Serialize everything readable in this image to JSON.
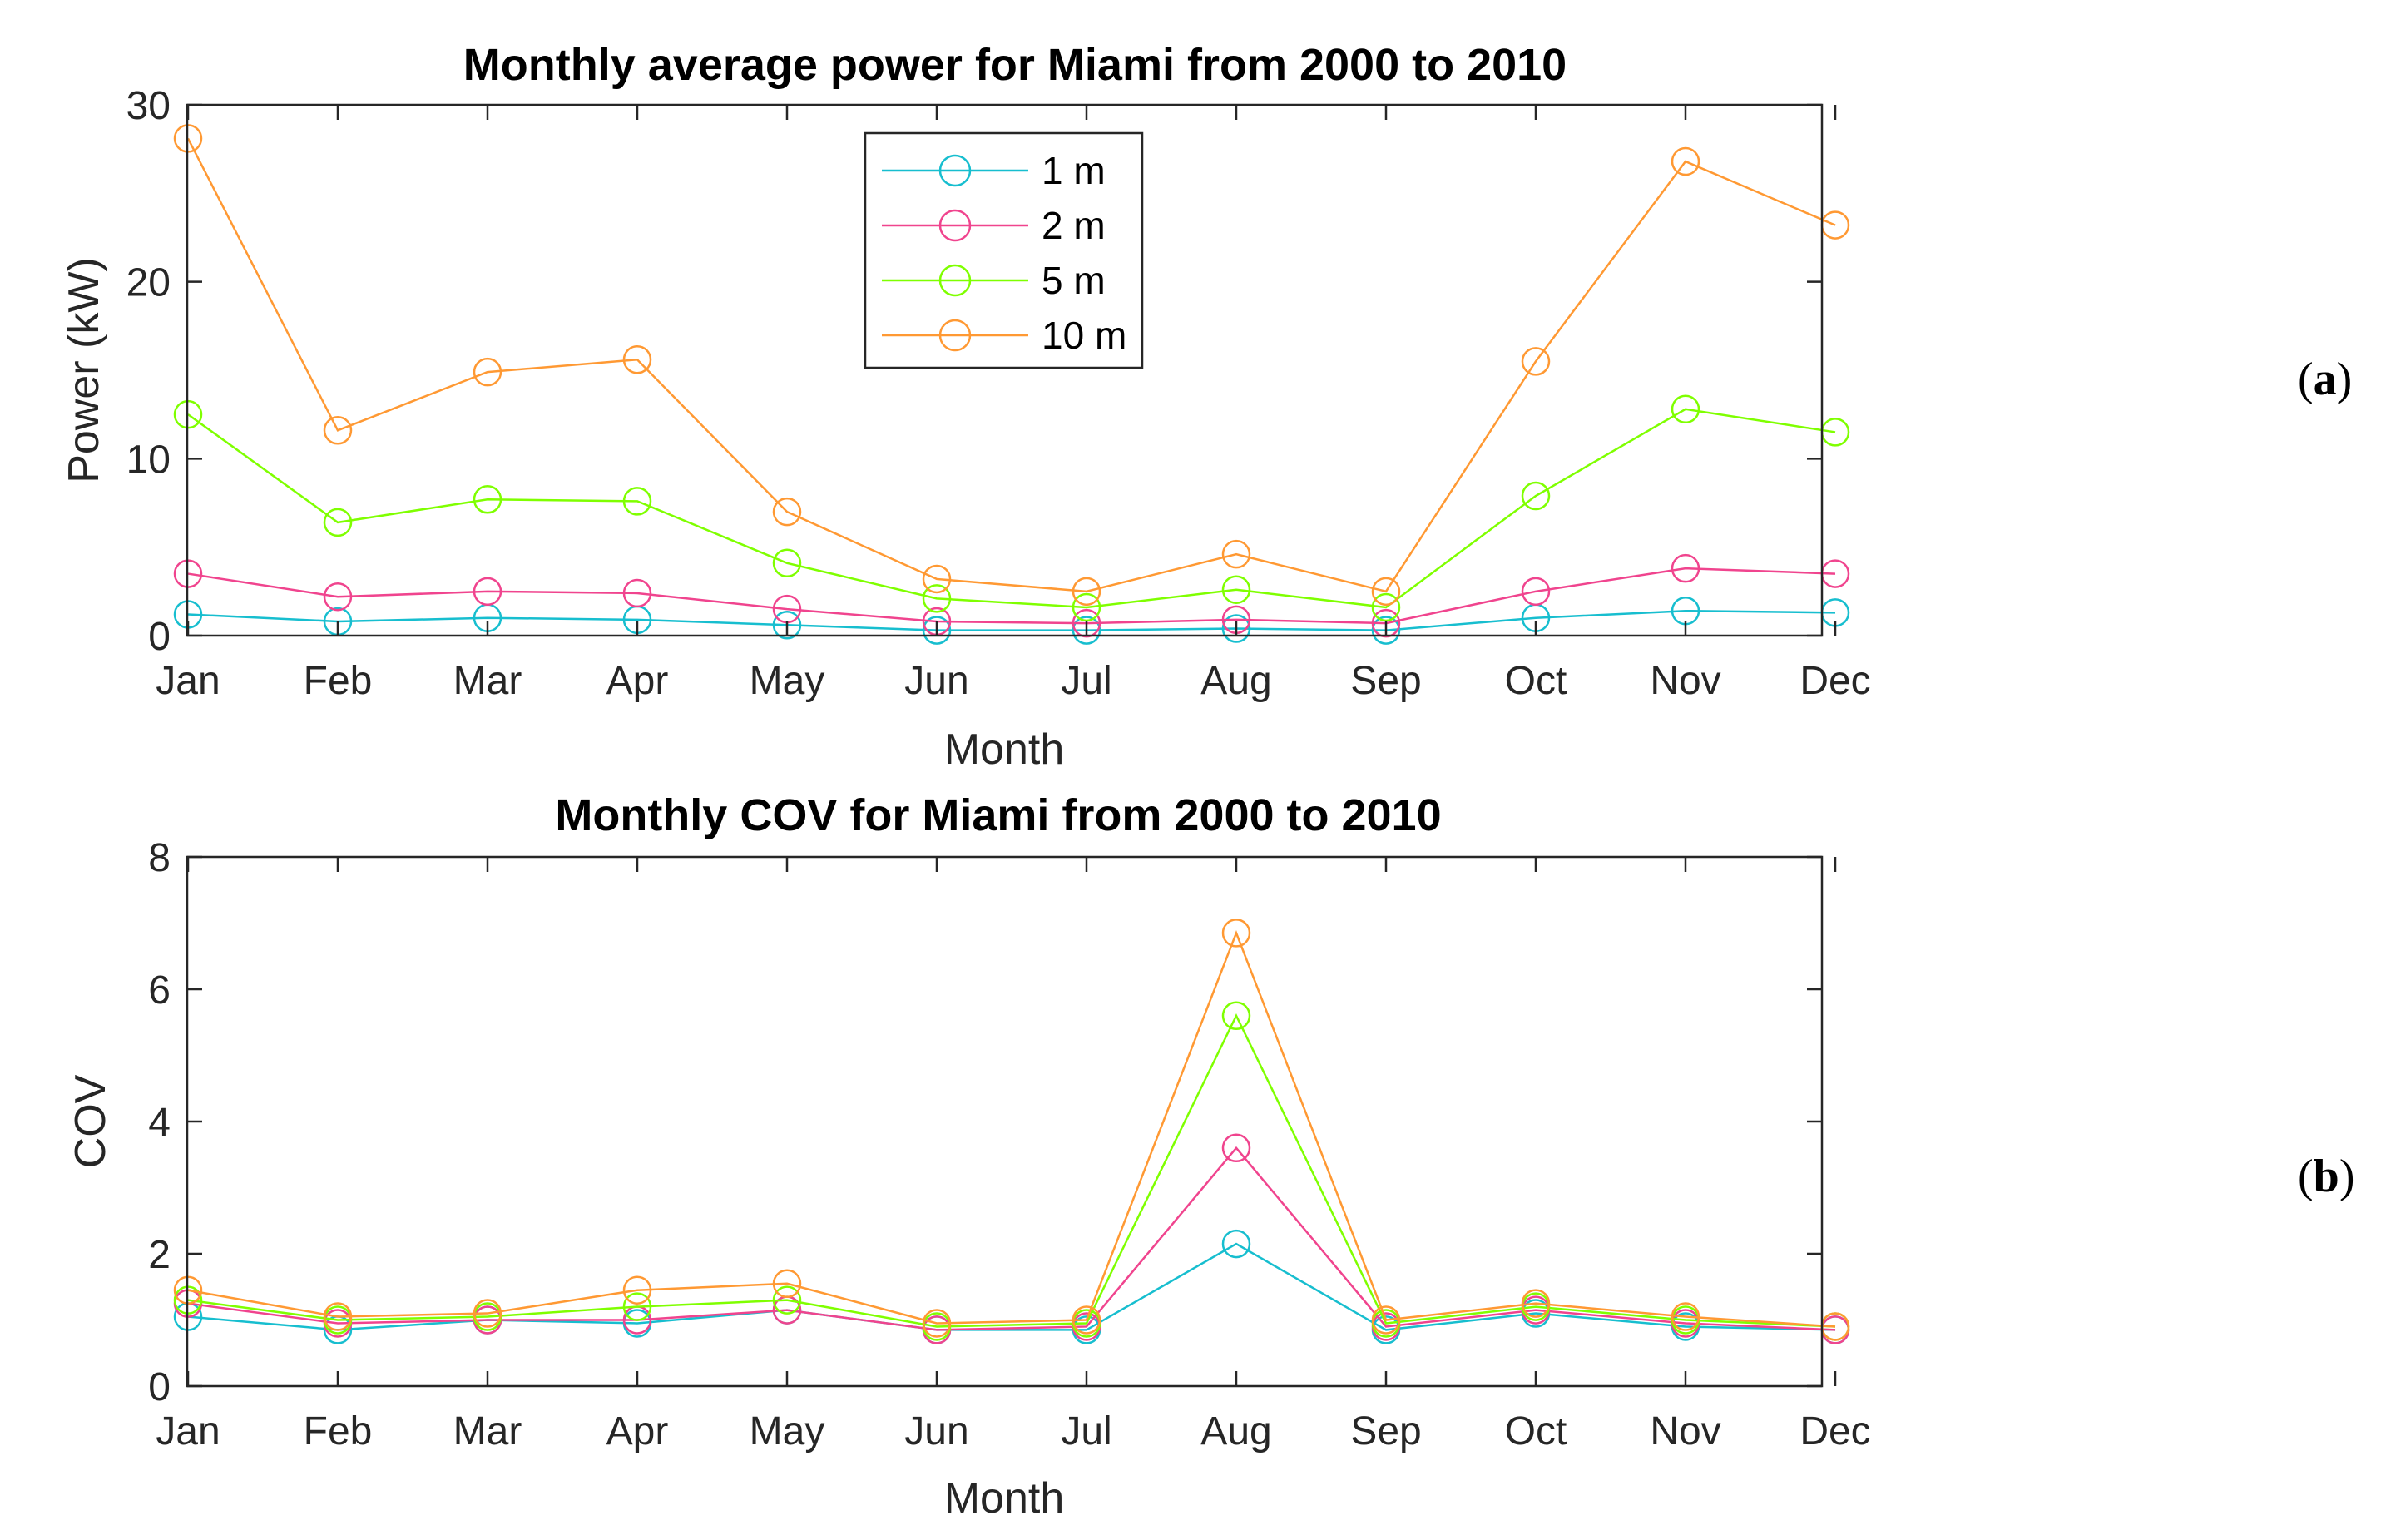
{
  "chart_data": [
    {
      "type": "line",
      "panel": "(a)",
      "panel_letter": "a",
      "title": "Monthly average power for Miami from 2000 to 2010",
      "xlabel": "Month",
      "ylabel": "Power (kW)",
      "ylim": [
        0,
        30
      ],
      "yticks": [
        "0",
        "10",
        "20",
        "30"
      ],
      "ytick_values": [
        0,
        10,
        20,
        30
      ],
      "categories": [
        "Jan",
        "Feb",
        "Mar",
        "Apr",
        "May",
        "Jun",
        "Jul",
        "Aug",
        "Sep",
        "Oct",
        "Nov",
        "Dec"
      ],
      "grid": false,
      "legend": "top-center",
      "series": [
        {
          "name": "1 m",
          "color": "#17BECF",
          "values": [
            1.2,
            0.8,
            1.0,
            0.9,
            0.6,
            0.3,
            0.3,
            0.4,
            0.3,
            1.0,
            1.4,
            1.3
          ]
        },
        {
          "name": "2 m",
          "color": "#F0448E",
          "values": [
            3.5,
            2.2,
            2.5,
            2.4,
            1.5,
            0.8,
            0.7,
            0.9,
            0.7,
            2.5,
            3.8,
            3.5
          ]
        },
        {
          "name": "5 m",
          "color": "#7FFF00",
          "values": [
            12.5,
            6.4,
            7.7,
            7.6,
            4.1,
            2.1,
            1.6,
            2.6,
            1.6,
            7.9,
            12.8,
            11.5
          ]
        },
        {
          "name": "10 m",
          "color": "#FF9933",
          "values": [
            28.1,
            11.6,
            14.9,
            15.6,
            7.0,
            3.2,
            2.5,
            4.6,
            2.5,
            15.5,
            26.8,
            23.2
          ]
        }
      ]
    },
    {
      "type": "line",
      "panel": "(b)",
      "panel_letter": "b",
      "title": "Monthly COV for Miami from 2000 to 2010",
      "xlabel": "Month",
      "ylabel": "COV",
      "ylim": [
        0,
        8
      ],
      "yticks": [
        "0",
        "2",
        "4",
        "6",
        "8"
      ],
      "ytick_values": [
        0,
        2,
        4,
        6,
        8
      ],
      "categories": [
        "Jan",
        "Feb",
        "Mar",
        "Apr",
        "May",
        "Jun",
        "Jul",
        "Aug",
        "Sep",
        "Oct",
        "Nov",
        "Dec"
      ],
      "grid": false,
      "legend": "none",
      "series": [
        {
          "name": "1 m",
          "color": "#17BECF",
          "values": [
            1.05,
            0.85,
            1.0,
            0.95,
            1.15,
            0.85,
            0.85,
            2.15,
            0.85,
            1.1,
            0.9,
            0.85
          ]
        },
        {
          "name": "2 m",
          "color": "#F0448E",
          "values": [
            1.25,
            0.95,
            1.0,
            1.0,
            1.15,
            0.85,
            0.9,
            3.6,
            0.9,
            1.15,
            0.95,
            0.85
          ]
        },
        {
          "name": "5 m",
          "color": "#7FFF00",
          "values": [
            1.3,
            1.0,
            1.05,
            1.2,
            1.3,
            0.9,
            0.95,
            5.6,
            0.95,
            1.2,
            1.0,
            0.9
          ]
        },
        {
          "name": "10 m",
          "color": "#FF9933",
          "values": [
            1.45,
            1.05,
            1.1,
            1.45,
            1.55,
            0.95,
            1.0,
            6.85,
            1.0,
            1.25,
            1.05,
            0.9
          ]
        }
      ]
    }
  ]
}
